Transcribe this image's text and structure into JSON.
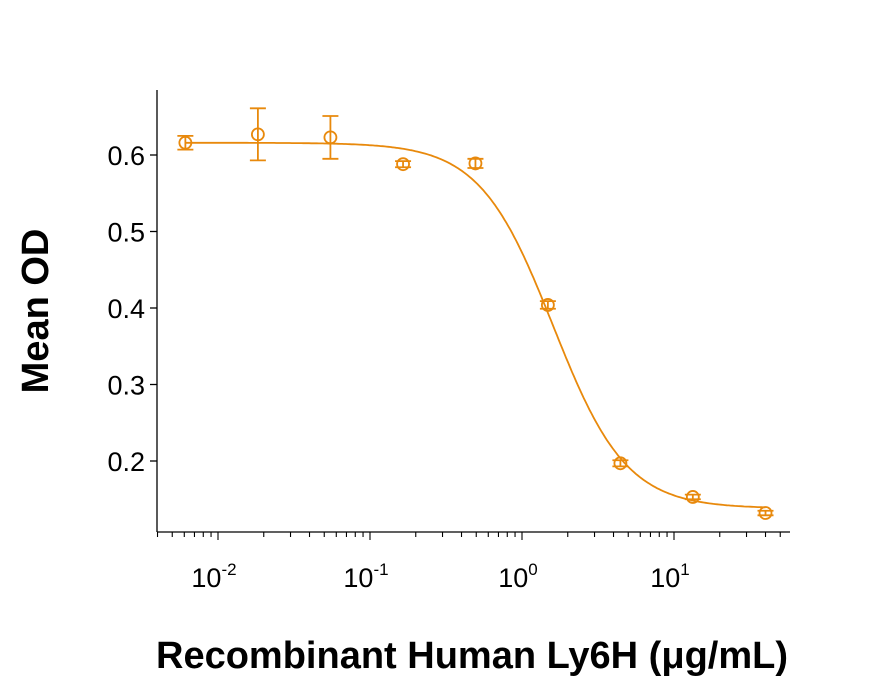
{
  "chart_data": {
    "type": "scatter",
    "title": "",
    "xlabel": "Recombinant Human Ly6H (μg/mL)",
    "ylabel": "Mean OD",
    "x_scale": "log",
    "xlim": [
      0.004,
      60
    ],
    "ylim": [
      0.1,
      0.685
    ],
    "x_ticks": [
      {
        "base": "10",
        "exp": "-2",
        "value": 0.01
      },
      {
        "base": "10",
        "exp": "-1",
        "value": 0.1
      },
      {
        "base": "10",
        "exp": "0",
        "value": 1
      },
      {
        "base": "10",
        "exp": "1",
        "value": 10
      }
    ],
    "y_ticks": [
      "0.2",
      "0.3",
      "0.4",
      "0.5",
      "0.6"
    ],
    "grid": false,
    "color": "#E8890C",
    "series": [
      {
        "x": [
          0.0061,
          0.0183,
          0.0549,
          0.165,
          0.494,
          1.48,
          4.44,
          13.3,
          40
        ],
        "y": [
          0.616,
          0.627,
          0.623,
          0.588,
          0.589,
          0.404,
          0.197,
          0.153,
          0.132
        ],
        "error": [
          0.009,
          0.034,
          0.028,
          0.004,
          0.006,
          0.005,
          0.004,
          0.003,
          0.003
        ]
      }
    ]
  }
}
